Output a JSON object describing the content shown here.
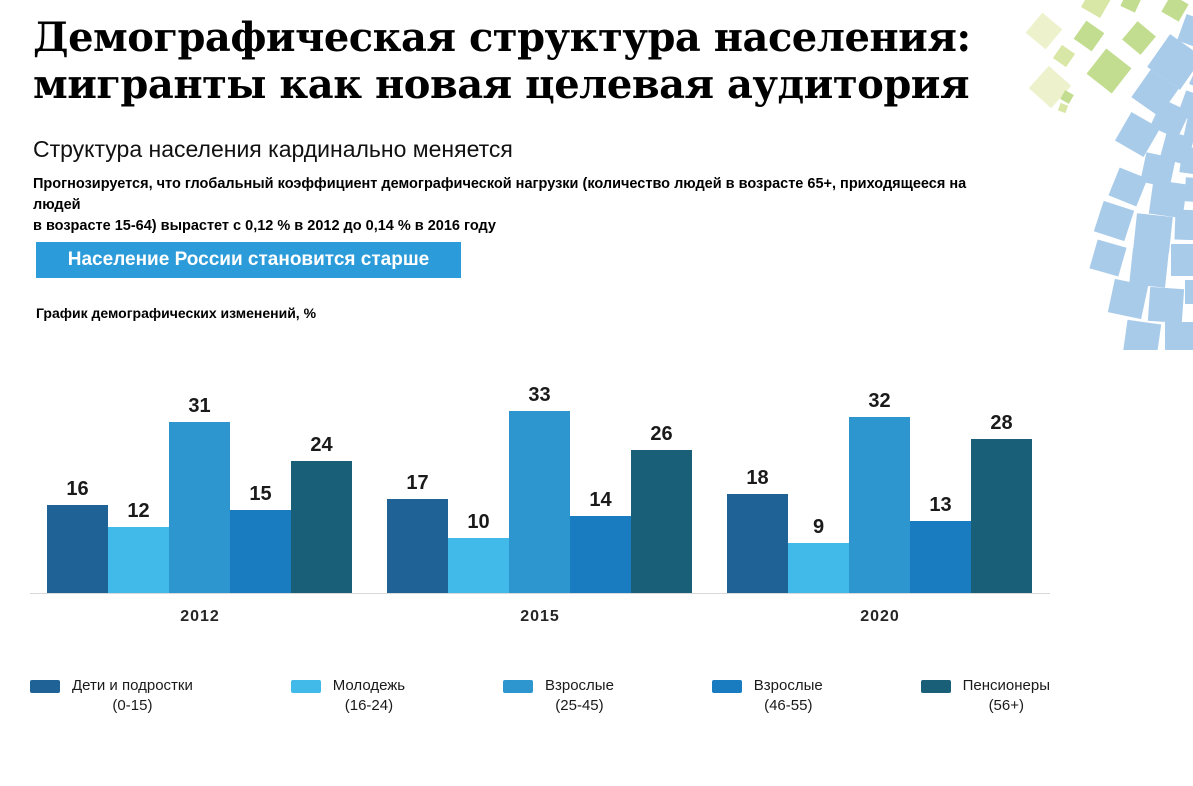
{
  "slide": {
    "title_line1": "Демографическая структура населения:",
    "title_line2": "мигранты как новая целевая аудитория",
    "subtitle": "Структура населения кардинально меняется",
    "description_line1": "Прогнозируется, что глобальный коэффициент демографической нагрузки (количество людей в возрасте 65+, приходящееся на людей",
    "description_line2": "в возрасте 15-64) вырастет с 0,12 % в 2012  до 0,14 % в 2016 году",
    "banner_label": "Население России становится старше",
    "chart_caption": "График демографических изменений, %"
  },
  "colors": {
    "banner_bg": "#2B9CD9",
    "axis_line": "#D9D9D9",
    "mosaic_blue": "#A9CBEA",
    "mosaic_green_medium": "#C3DD90",
    "mosaic_green_pale": "#D8E7A5",
    "mosaic_green_lightest": "#EDF2CC"
  },
  "chart_data": {
    "type": "bar",
    "title": "График демографических изменений, %",
    "ylabel": "%",
    "ylim": [
      0,
      35
    ],
    "grid": false,
    "data_labels": true,
    "legend_position": "bottom",
    "categories": [
      "2012",
      "2015",
      "2020"
    ],
    "series": [
      {
        "name": "Дети и подростки",
        "range": "(0-15)",
        "color": "#1F6396",
        "values": [
          16,
          17,
          18
        ]
      },
      {
        "name": "Молодежь",
        "range": "(16-24)",
        "color": "#41B9E9",
        "values": [
          12,
          10,
          9
        ]
      },
      {
        "name": "Взрослые",
        "range": "(25-45)",
        "color": "#2E96CF",
        "values": [
          31,
          33,
          32
        ]
      },
      {
        "name": "Взрослые",
        "range": "(46-55)",
        "color": "#197CC1",
        "values": [
          15,
          14,
          13
        ]
      },
      {
        "name": "Пенсионеры",
        "range": "(56+)",
        "color": "#1A5F78",
        "values": [
          24,
          26,
          28
        ]
      }
    ]
  }
}
